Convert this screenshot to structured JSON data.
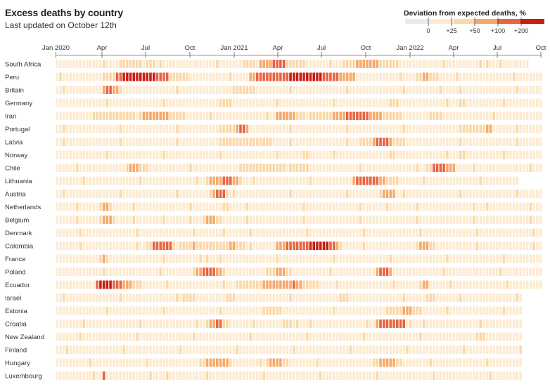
{
  "header": {
    "title": "Excess deaths by country",
    "subtitle": "Last updated on October 12th"
  },
  "colors": {
    "blue": "#e7ecf2",
    "cream": "#fdebd1",
    "tan": "#fbd8a8",
    "orange": "#f6a96a",
    "red_orange": "#e8633f",
    "dark_red": "#c81d12"
  },
  "legend": {
    "title": "Deviation from expected deaths, %",
    "labels": [
      "0",
      "+25",
      "+50",
      "+100",
      "+200"
    ]
  },
  "chart_data": {
    "type": "heatmap",
    "title": "Excess deaths by country",
    "subtitle": "Last updated on October 12th",
    "x_ticks": [
      "Jan 2020",
      "Apr",
      "Jul",
      "Oct",
      "Jan 2021",
      "Apr",
      "Jul",
      "Oct",
      "Jan 2022",
      "Apr",
      "Jul",
      "Oct"
    ],
    "x_range": [
      "2020-01",
      "2022-10"
    ],
    "columns_per_row": 146,
    "value_scale": "Deviation from expected deaths, %",
    "levels": [
      "<0",
      "0 to +25",
      "+25 to +50",
      "+50 to +100",
      "+100 to +200",
      ">+200"
    ],
    "rows": [
      {
        "country": "South Africa",
        "profile": [
          [
            0,
            1
          ],
          [
            19,
            2
          ],
          [
            30,
            1
          ],
          [
            56,
            2
          ],
          [
            61,
            3
          ],
          [
            65,
            4
          ],
          [
            69,
            2
          ],
          [
            75,
            1
          ],
          [
            86,
            2
          ],
          [
            90,
            3
          ],
          [
            97,
            2
          ],
          [
            103,
            1
          ],
          [
            127,
            2
          ],
          [
            130,
            1
          ],
          [
            142,
            1
          ]
        ],
        "end": 142
      },
      {
        "country": "Peru",
        "profile": [
          [
            0,
            1
          ],
          [
            14,
            2
          ],
          [
            18,
            4
          ],
          [
            20,
            5
          ],
          [
            30,
            4
          ],
          [
            34,
            2
          ],
          [
            40,
            1
          ],
          [
            58,
            3
          ],
          [
            60,
            4
          ],
          [
            70,
            5
          ],
          [
            80,
            4
          ],
          [
            85,
            3
          ],
          [
            90,
            1
          ],
          [
            108,
            2
          ],
          [
            110,
            3
          ],
          [
            112,
            2
          ],
          [
            116,
            1
          ]
        ],
        "end": 146
      },
      {
        "country": "Britain",
        "profile": [
          [
            0,
            1
          ],
          [
            14,
            3
          ],
          [
            15,
            4
          ],
          [
            17,
            3
          ],
          [
            19,
            1
          ],
          [
            53,
            2
          ],
          [
            60,
            1
          ],
          [
            115,
            2
          ],
          [
            116,
            1
          ]
        ],
        "end": 146
      },
      {
        "country": "Germany",
        "profile": [
          [
            0,
            1
          ],
          [
            49,
            2
          ],
          [
            53,
            1
          ],
          [
            100,
            2
          ],
          [
            103,
            1
          ],
          [
            121,
            2
          ],
          [
            123,
            1
          ]
        ],
        "end": 146
      },
      {
        "country": "Iran",
        "profile": [
          [
            0,
            1
          ],
          [
            11,
            2
          ],
          [
            26,
            3
          ],
          [
            34,
            2
          ],
          [
            39,
            1
          ],
          [
            66,
            3
          ],
          [
            72,
            2
          ],
          [
            83,
            3
          ],
          [
            87,
            4
          ],
          [
            94,
            3
          ],
          [
            98,
            2
          ],
          [
            104,
            1
          ],
          [
            112,
            2
          ],
          [
            116,
            1
          ]
        ],
        "end": 146
      },
      {
        "country": "Portugal",
        "profile": [
          [
            0,
            1
          ],
          [
            49,
            2
          ],
          [
            54,
            3
          ],
          [
            55,
            4
          ],
          [
            57,
            3
          ],
          [
            58,
            1
          ],
          [
            121,
            2
          ],
          [
            129,
            3
          ],
          [
            131,
            1
          ]
        ],
        "end": 146
      },
      {
        "country": "Latvia",
        "profile": [
          [
            0,
            1
          ],
          [
            49,
            2
          ],
          [
            66,
            1
          ],
          [
            91,
            2
          ],
          [
            95,
            3
          ],
          [
            96,
            4
          ],
          [
            100,
            3
          ],
          [
            101,
            2
          ],
          [
            104,
            1
          ]
        ],
        "end": 146
      },
      {
        "country": "Norway",
        "profile": [
          [
            0,
            1
          ],
          [
            74,
            2
          ],
          [
            76,
            1
          ],
          [
            101,
            2
          ],
          [
            102,
            1
          ],
          [
            121,
            2
          ],
          [
            123,
            1
          ]
        ],
        "end": 146
      },
      {
        "country": "Chile",
        "profile": [
          [
            0,
            1
          ],
          [
            21,
            2
          ],
          [
            22,
            3
          ],
          [
            25,
            2
          ],
          [
            28,
            1
          ],
          [
            55,
            2
          ],
          [
            76,
            1
          ],
          [
            111,
            2
          ],
          [
            113,
            4
          ],
          [
            117,
            3
          ],
          [
            120,
            1
          ]
        ],
        "end": 146
      },
      {
        "country": "Lithuania",
        "profile": [
          [
            0,
            1
          ],
          [
            45,
            2
          ],
          [
            46,
            3
          ],
          [
            50,
            4
          ],
          [
            53,
            3
          ],
          [
            55,
            2
          ],
          [
            56,
            1
          ],
          [
            89,
            3
          ],
          [
            90,
            4
          ],
          [
            97,
            3
          ],
          [
            99,
            2
          ],
          [
            103,
            1
          ]
        ],
        "end": 139
      },
      {
        "country": "Austria",
        "profile": [
          [
            0,
            1
          ],
          [
            46,
            2
          ],
          [
            47,
            3
          ],
          [
            48,
            4
          ],
          [
            51,
            2
          ],
          [
            52,
            1
          ],
          [
            97,
            2
          ],
          [
            98,
            3
          ],
          [
            102,
            1
          ]
        ],
        "end": 146
      },
      {
        "country": "Netherlands",
        "profile": [
          [
            0,
            1
          ],
          [
            13,
            2
          ],
          [
            14,
            3
          ],
          [
            16,
            2
          ],
          [
            17,
            1
          ],
          [
            50,
            2
          ],
          [
            52,
            1
          ],
          [
            99,
            2
          ],
          [
            100,
            1
          ],
          [
            129,
            2
          ],
          [
            130,
            1
          ]
        ],
        "end": 146
      },
      {
        "country": "Belgium",
        "profile": [
          [
            0,
            1
          ],
          [
            13,
            2
          ],
          [
            14,
            3
          ],
          [
            17,
            2
          ],
          [
            18,
            1
          ],
          [
            32,
            2
          ],
          [
            33,
            1
          ],
          [
            44,
            2
          ],
          [
            45,
            3
          ],
          [
            48,
            2
          ],
          [
            50,
            1
          ]
        ],
        "end": 146
      },
      {
        "country": "Denmark",
        "profile": [
          [
            0,
            1
          ],
          [
            50,
            2
          ],
          [
            51,
            1
          ]
        ],
        "end": 146
      },
      {
        "country": "Colombia",
        "profile": [
          [
            0,
            1
          ],
          [
            27,
            2
          ],
          [
            29,
            4
          ],
          [
            35,
            2
          ],
          [
            41,
            3
          ],
          [
            42,
            2
          ],
          [
            52,
            3
          ],
          [
            54,
            2
          ],
          [
            57,
            1
          ],
          [
            66,
            3
          ],
          [
            69,
            4
          ],
          [
            76,
            5
          ],
          [
            82,
            4
          ],
          [
            84,
            3
          ],
          [
            85,
            2
          ],
          [
            86,
            1
          ],
          [
            108,
            2
          ],
          [
            109,
            3
          ],
          [
            112,
            2
          ],
          [
            114,
            1
          ]
        ],
        "end": 146
      },
      {
        "country": "France",
        "profile": [
          [
            0,
            1
          ],
          [
            13,
            2
          ],
          [
            14,
            3
          ],
          [
            15,
            2
          ],
          [
            16,
            1
          ],
          [
            43,
            2
          ],
          [
            46,
            1
          ]
        ],
        "end": 146
      },
      {
        "country": "Poland",
        "profile": [
          [
            0,
            1
          ],
          [
            41,
            2
          ],
          [
            42,
            3
          ],
          [
            44,
            4
          ],
          [
            48,
            3
          ],
          [
            50,
            2
          ],
          [
            51,
            1
          ],
          [
            63,
            2
          ],
          [
            66,
            3
          ],
          [
            69,
            2
          ],
          [
            71,
            1
          ],
          [
            96,
            3
          ],
          [
            97,
            4
          ],
          [
            100,
            3
          ],
          [
            101,
            1
          ]
        ],
        "end": 146
      },
      {
        "country": "Ecuador",
        "profile": [
          [
            0,
            1
          ],
          [
            12,
            4
          ],
          [
            13,
            5
          ],
          [
            17,
            4
          ],
          [
            20,
            3
          ],
          [
            23,
            2
          ],
          [
            26,
            1
          ],
          [
            54,
            2
          ],
          [
            62,
            3
          ],
          [
            71,
            4
          ],
          [
            72,
            3
          ],
          [
            74,
            2
          ],
          [
            80,
            1
          ],
          [
            109,
            2
          ],
          [
            110,
            3
          ],
          [
            112,
            1
          ]
        ],
        "end": 146
      },
      {
        "country": "Israel",
        "profile": [
          [
            0,
            1
          ],
          [
            38,
            2
          ],
          [
            42,
            1
          ],
          [
            51,
            2
          ],
          [
            53,
            1
          ],
          [
            85,
            2
          ],
          [
            88,
            1
          ],
          [
            111,
            2
          ],
          [
            114,
            1
          ]
        ],
        "end": 140
      },
      {
        "country": "Estonia",
        "profile": [
          [
            0,
            1
          ],
          [
            62,
            2
          ],
          [
            68,
            1
          ],
          [
            99,
            2
          ],
          [
            104,
            3
          ],
          [
            107,
            2
          ],
          [
            110,
            1
          ]
        ],
        "end": 140
      },
      {
        "country": "Croatia",
        "profile": [
          [
            0,
            1
          ],
          [
            45,
            2
          ],
          [
            46,
            3
          ],
          [
            48,
            4
          ],
          [
            50,
            2
          ],
          [
            52,
            1
          ],
          [
            68,
            2
          ],
          [
            73,
            1
          ],
          [
            96,
            3
          ],
          [
            97,
            4
          ],
          [
            105,
            2
          ],
          [
            107,
            1
          ]
        ],
        "end": 140
      },
      {
        "country": "New Zealand",
        "profile": [
          [
            0,
            1
          ],
          [
            127,
            2
          ],
          [
            129,
            1
          ]
        ],
        "end": 140
      },
      {
        "country": "Finland",
        "profile": [
          [
            0,
            1
          ]
        ],
        "end": 140
      },
      {
        "country": "Hungary",
        "profile": [
          [
            0,
            1
          ],
          [
            43,
            2
          ],
          [
            45,
            3
          ],
          [
            52,
            2
          ],
          [
            53,
            1
          ],
          [
            63,
            2
          ],
          [
            64,
            3
          ],
          [
            68,
            2
          ],
          [
            70,
            1
          ],
          [
            96,
            2
          ],
          [
            97,
            3
          ],
          [
            102,
            2
          ],
          [
            104,
            1
          ]
        ],
        "end": 140
      },
      {
        "country": "Luxembourg",
        "profile": [
          [
            0,
            1
          ],
          [
            14,
            4
          ],
          [
            15,
            1
          ],
          [
            33,
            2
          ],
          [
            34,
            1
          ]
        ],
        "end": 140
      }
    ]
  }
}
